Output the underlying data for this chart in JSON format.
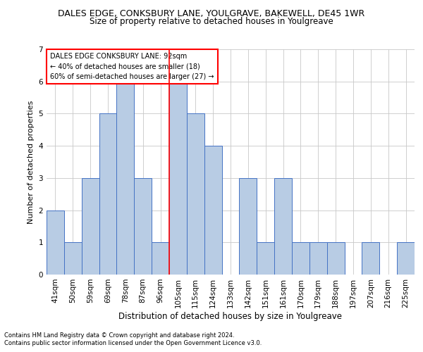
{
  "title": "DALES EDGE, CONKSBURY LANE, YOULGRAVE, BAKEWELL, DE45 1WR",
  "subtitle": "Size of property relative to detached houses in Youlgreave",
  "xlabel": "Distribution of detached houses by size in Youlgreave",
  "ylabel": "Number of detached properties",
  "categories": [
    "41sqm",
    "50sqm",
    "59sqm",
    "69sqm",
    "78sqm",
    "87sqm",
    "96sqm",
    "105sqm",
    "115sqm",
    "124sqm",
    "133sqm",
    "142sqm",
    "151sqm",
    "161sqm",
    "170sqm",
    "179sqm",
    "188sqm",
    "197sqm",
    "207sqm",
    "216sqm",
    "225sqm"
  ],
  "values": [
    2,
    1,
    3,
    5,
    6,
    3,
    1,
    6,
    5,
    4,
    0,
    3,
    1,
    3,
    1,
    1,
    1,
    0,
    1,
    0,
    1
  ],
  "bar_color": "#b8cce4",
  "bar_edge_color": "#4472c4",
  "ref_line_index": 6.5,
  "ylim": [
    0,
    7
  ],
  "yticks": [
    0,
    1,
    2,
    3,
    4,
    5,
    6,
    7
  ],
  "annotation_text": "DALES EDGE CONKSBURY LANE: 92sqm\n← 40% of detached houses are smaller (18)\n60% of semi-detached houses are larger (27) →",
  "footnote1": "Contains HM Land Registry data © Crown copyright and database right 2024.",
  "footnote2": "Contains public sector information licensed under the Open Government Licence v3.0.",
  "background_color": "#ffffff",
  "grid_color": "#c8c8c8",
  "title_fontsize": 9,
  "subtitle_fontsize": 8.5,
  "ylabel_fontsize": 8,
  "xlabel_fontsize": 8.5,
  "tick_fontsize": 7.5,
  "annot_fontsize": 7,
  "footnote_fontsize": 6
}
